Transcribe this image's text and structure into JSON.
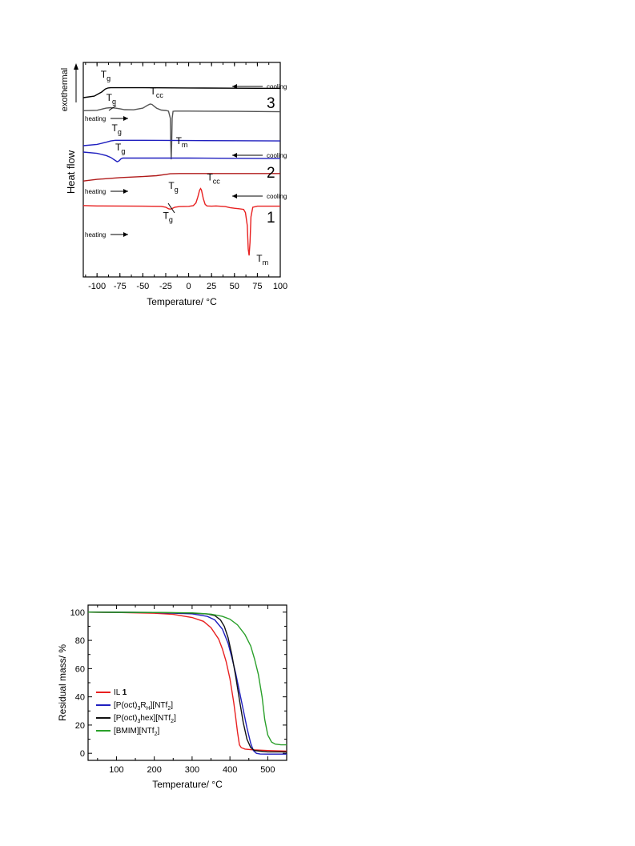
{
  "chart_data": [
    {
      "type": "line",
      "title": "",
      "xlabel": "Temperature/ °C",
      "ylabel": "Heat flow",
      "xlim": [
        -115,
        100
      ],
      "ylim": [
        0,
        1
      ],
      "xticks": [
        -100,
        -75,
        -50,
        -25,
        0,
        25,
        50,
        75,
        100
      ],
      "grid": false,
      "y_direction_label": "exothermal",
      "series": [
        {
          "name": "3",
          "segment": "cooling",
          "color": "#000000",
          "x": [
            -115,
            -103,
            -95,
            -91,
            -88,
            -85,
            -75,
            -50,
            0,
            50,
            100
          ],
          "y": [
            0.836,
            0.843,
            0.862,
            0.876,
            0.881,
            0.882,
            0.882,
            0.882,
            0.881,
            0.88,
            0.879
          ]
        },
        {
          "name": "3",
          "segment": "heating",
          "color": "#555555",
          "x": [
            -115,
            -100,
            -95,
            -90,
            -85,
            -80,
            -75,
            -70,
            -60,
            -50,
            -45,
            -42,
            -40,
            -38,
            -35,
            -30,
            -25,
            -22,
            -20,
            -19.5,
            -19,
            -18.5,
            -18,
            -17,
            -15,
            0,
            50,
            100
          ],
          "y": [
            0.775,
            0.777,
            0.782,
            0.787,
            0.789,
            0.787,
            0.784,
            0.78,
            0.779,
            0.787,
            0.8,
            0.806,
            0.804,
            0.797,
            0.787,
            0.778,
            0.776,
            0.773,
            0.74,
            0.62,
            0.548,
            0.62,
            0.74,
            0.772,
            0.773,
            0.773,
            0.772,
            0.77
          ]
        },
        {
          "name": "2",
          "segment": "cooling",
          "color": "#1f1fbf",
          "x": [
            -115,
            -100,
            -90,
            -85,
            -80,
            -75,
            -50,
            0,
            50,
            100
          ],
          "y": [
            0.612,
            0.618,
            0.628,
            0.634,
            0.637,
            0.637,
            0.637,
            0.636,
            0.635,
            0.634
          ]
        },
        {
          "name": "2",
          "segment": "heating",
          "color": "#1f1fbf",
          "x": [
            -115,
            -100,
            -90,
            -85,
            -80,
            -78,
            -76,
            -74,
            -72,
            -70,
            -60,
            0,
            50,
            100
          ],
          "y": [
            0.582,
            0.576,
            0.566,
            0.557,
            0.543,
            0.537,
            0.541,
            0.55,
            0.554,
            0.554,
            0.554,
            0.554,
            0.553,
            0.552
          ]
        },
        {
          "name": "1",
          "segment": "cooling",
          "color": "#b01a1a",
          "x": [
            -115,
            -100,
            -75,
            -50,
            -35,
            -25,
            -20,
            -10,
            0,
            50,
            100
          ],
          "y": [
            0.447,
            0.455,
            0.463,
            0.468,
            0.472,
            0.478,
            0.481,
            0.482,
            0.482,
            0.482,
            0.482
          ]
        },
        {
          "name": "1",
          "segment": "heating",
          "color": "#e82020",
          "x": [
            -115,
            -100,
            -50,
            -30,
            -25,
            -22,
            -20,
            -18,
            -15,
            -10,
            0,
            5,
            8,
            10,
            12,
            13,
            14,
            16,
            18,
            20,
            25,
            30,
            40,
            45,
            50,
            55,
            60,
            62,
            64,
            65,
            66,
            67,
            68,
            70,
            75,
            100
          ],
          "y": [
            0.333,
            0.331,
            0.33,
            0.329,
            0.325,
            0.318,
            0.316,
            0.319,
            0.325,
            0.328,
            0.329,
            0.332,
            0.345,
            0.372,
            0.405,
            0.412,
            0.405,
            0.365,
            0.338,
            0.331,
            0.33,
            0.331,
            0.328,
            0.323,
            0.32,
            0.318,
            0.315,
            0.3,
            0.24,
            0.13,
            0.1,
            0.16,
            0.28,
            0.325,
            0.33,
            0.33
          ]
        }
      ],
      "annotations": [
        {
          "text": "T",
          "sub": "g",
          "x": -96,
          "y": 0.93
        },
        {
          "text": "T",
          "sub": "g",
          "x": -90,
          "y": 0.82
        },
        {
          "text": "T",
          "sub": "cc",
          "x": -42,
          "y": 0.85
        },
        {
          "text": "T",
          "sub": "m",
          "x": -14,
          "y": 0.62
        },
        {
          "text": "T",
          "sub": "g",
          "x": -84,
          "y": 0.68
        },
        {
          "text": "T",
          "sub": "g",
          "x": -80,
          "y": 0.59
        },
        {
          "text": "T",
          "sub": "g",
          "x": -22,
          "y": 0.41
        },
        {
          "text": "T",
          "sub": "cc",
          "x": 20,
          "y": 0.45
        },
        {
          "text": "T",
          "sub": "g",
          "x": -28,
          "y": 0.27
        },
        {
          "text": "T",
          "sub": "m",
          "x": 74,
          "y": 0.07
        }
      ],
      "labels": {
        "cooling": "cooling",
        "heating": "heating",
        "curve_1": "1",
        "curve_2": "2",
        "curve_3": "3",
        "tg_main": "T",
        "tg_sub": "g",
        "tcc_sub": "cc",
        "tm_sub": "m"
      }
    },
    {
      "type": "line",
      "title": "",
      "xlabel": "Temperature/ °C",
      "ylabel": "Residual mass/ %",
      "xlim": [
        25,
        550
      ],
      "ylim": [
        -5,
        105
      ],
      "xticks": [
        100,
        200,
        300,
        400,
        500
      ],
      "yticks": [
        0,
        20,
        40,
        60,
        80,
        100
      ],
      "grid": false,
      "legend": "center-left",
      "series": [
        {
          "name": "IL 1",
          "name_main": "IL ",
          "name_bold": "1",
          "color": "#e82020",
          "x": [
            25,
            100,
            200,
            250,
            300,
            330,
            350,
            370,
            380,
            390,
            400,
            410,
            415,
            420,
            425,
            430,
            440,
            460,
            500,
            550
          ],
          "y": [
            100,
            99.8,
            99.2,
            98.4,
            96.2,
            93.5,
            89,
            81,
            74,
            65,
            53,
            36,
            26,
            15,
            6,
            4,
            3,
            2.5,
            2,
            1.5
          ]
        },
        {
          "name": "[P(oct)3RH][NTf2]",
          "color": "#1f1fbf",
          "name_parts": [
            "[P(oct)",
            "3",
            "R",
            "H",
            "][NTf",
            "2",
            "]"
          ],
          "x": [
            25,
            100,
            200,
            300,
            340,
            360,
            380,
            395,
            405,
            415,
            425,
            435,
            445,
            455,
            462,
            470,
            480,
            500,
            550
          ],
          "y": [
            100,
            99.9,
            99.7,
            98.8,
            97,
            94.5,
            88,
            78,
            68,
            57,
            44,
            31,
            18,
            7,
            2,
            0,
            -0.5,
            -0.6,
            -0.6
          ]
        },
        {
          "name": "[P(oct)3hex][NTf2]",
          "color": "#111111",
          "name_parts": [
            "[P(oct)",
            "3",
            "hex][NTf",
            "2",
            "]"
          ],
          "x": [
            25,
            100,
            200,
            300,
            340,
            360,
            375,
            385,
            395,
            405,
            415,
            425,
            435,
            445,
            455,
            465,
            480,
            500,
            550
          ],
          "y": [
            100,
            99.9,
            99.8,
            99.3,
            98.7,
            97.6,
            94.5,
            90,
            82,
            70,
            55,
            38,
            22,
            10,
            4,
            2,
            1.5,
            1,
            1
          ]
        },
        {
          "name": "[BMIM][NTf2]",
          "color": "#2aa02a",
          "name_parts": [
            "[BMIM][NTf",
            "2",
            "]"
          ],
          "x": [
            25,
            100,
            200,
            300,
            350,
            380,
            400,
            420,
            440,
            455,
            465,
            475,
            485,
            492,
            500,
            510,
            520,
            535,
            550
          ],
          "y": [
            100,
            99.9,
            99.8,
            99.5,
            98.6,
            97,
            95,
            91,
            84,
            76,
            67,
            56,
            40,
            24,
            13,
            8,
            6.5,
            6,
            6
          ]
        }
      ]
    }
  ]
}
